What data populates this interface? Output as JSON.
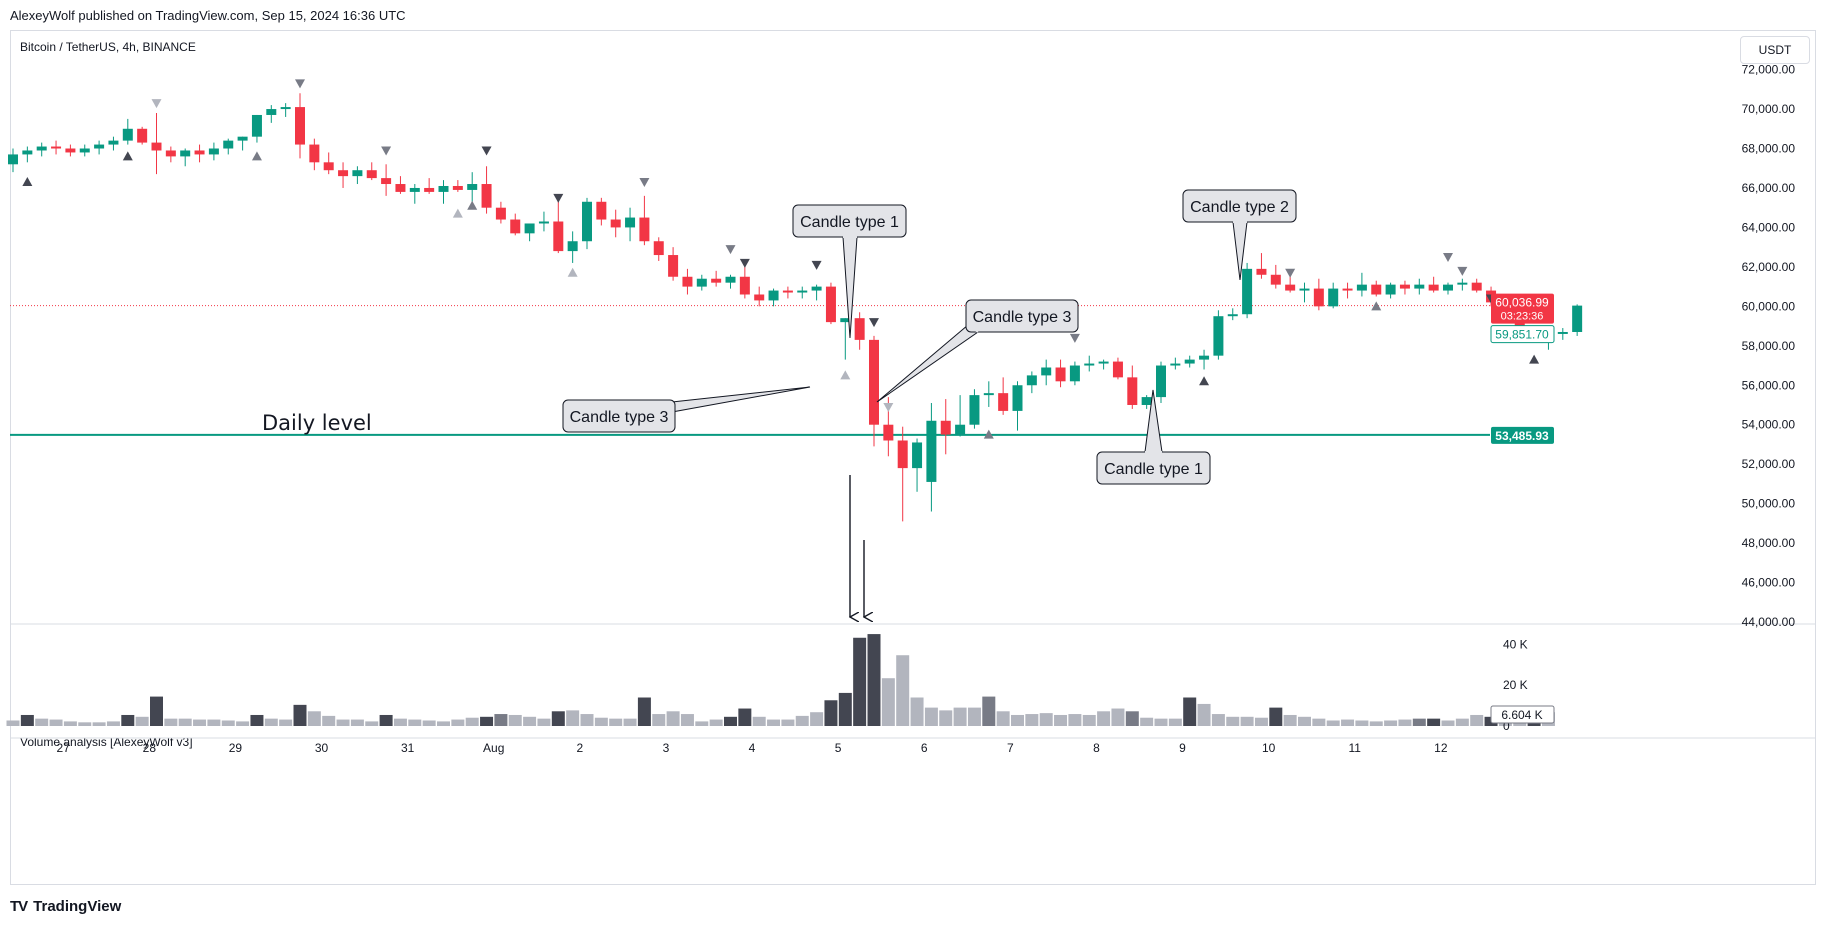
{
  "header": {
    "published_line": "AlexeyWolf published on TradingView.com, Sep 15, 2024 16:36 UTC"
  },
  "chart_header": {
    "symbol": "Bitcoin / TetherUS, 4h, BINANCE",
    "currency": "USDT"
  },
  "volume_pane": {
    "title": "Volume analysis [AlexeyWolf v3]",
    "current_volume_label": "6.604 K"
  },
  "footer": {
    "brand": "TradingView",
    "logo_text": "TV"
  },
  "colors": {
    "up": "#089981",
    "down": "#f23645",
    "level": "#089981",
    "grid": "#f0f3fa",
    "vol_dark": "#434651",
    "vol_mid": "#787b86",
    "vol_light": "#b2b5be"
  },
  "price_labels": {
    "last_price": "60,036.99",
    "countdown": "03:23:36",
    "second_price": "59,851.70",
    "daily_level": "53,485.93"
  },
  "annotations": {
    "daily_level_text": "Daily level",
    "callouts": [
      {
        "id": "c1",
        "text": "Candle type 1"
      },
      {
        "id": "c2",
        "text": "Candle type 3"
      },
      {
        "id": "c3",
        "text": "Candle type 3"
      },
      {
        "id": "c4",
        "text": "Candle type 2"
      },
      {
        "id": "c5",
        "text": "Candle type 1"
      }
    ]
  },
  "chart_data": {
    "type": "candlestick",
    "price_axis": {
      "ticks": [
        44000,
        46000,
        48000,
        50000,
        52000,
        54000,
        56000,
        58000,
        60000,
        62000,
        64000,
        66000,
        68000,
        70000,
        72000
      ],
      "tick_labels": [
        "44,000.00",
        "46,000.00",
        "48,000.00",
        "50,000.00",
        "52,000.00",
        "54,000.00",
        "56,000.00",
        "58,000.00",
        "60,000.00",
        "62,000.00",
        "64,000.00",
        "66,000.00",
        "68,000.00",
        "70,000.00",
        "72,000.00"
      ],
      "range": [
        44000,
        73500
      ]
    },
    "volume_axis": {
      "ticks": [
        0,
        20000,
        40000
      ],
      "tick_labels": [
        "0",
        "20 K",
        "40 K"
      ],
      "range": [
        0,
        47000
      ]
    },
    "time_axis": {
      "labels": [
        "27",
        "28",
        "29",
        "30",
        "31",
        "Aug",
        "2",
        "3",
        "4",
        "5",
        "6",
        "7",
        "8",
        "9",
        "10",
        "11",
        "12"
      ],
      "label_positions_bar": [
        3.5,
        9.5,
        15.5,
        21.5,
        27.5,
        33.5,
        39.5,
        45.5,
        51.5,
        57.5,
        63.5,
        69.5,
        75.5,
        81.5,
        87.5,
        93.5,
        99.5
      ]
    },
    "last_price": 60036.99,
    "daily_level": 53485.93,
    "candles": [
      [
        67200,
        68000,
        66800,
        67700
      ],
      [
        67700,
        68100,
        67300,
        67900
      ],
      [
        67900,
        68300,
        67600,
        68100
      ],
      [
        68100,
        68400,
        67700,
        68000
      ],
      [
        68000,
        68200,
        67600,
        67800
      ],
      [
        67800,
        68200,
        67600,
        68000
      ],
      [
        68000,
        68400,
        67700,
        68200
      ],
      [
        68200,
        68600,
        67900,
        68400
      ],
      [
        68400,
        69500,
        68200,
        69000
      ],
      [
        69000,
        69100,
        68200,
        68300
      ],
      [
        68300,
        69800,
        66700,
        67900
      ],
      [
        67900,
        68100,
        67300,
        67600
      ],
      [
        67600,
        68000,
        67100,
        67900
      ],
      [
        67900,
        68200,
        67300,
        67700
      ],
      [
        67700,
        68300,
        67400,
        68000
      ],
      [
        68000,
        68500,
        67700,
        68400
      ],
      [
        68400,
        68600,
        67900,
        68600
      ],
      [
        68600,
        69700,
        68300,
        69700
      ],
      [
        69700,
        70200,
        69300,
        70000
      ],
      [
        70000,
        70300,
        69600,
        70100
      ],
      [
        70100,
        70800,
        67500,
        68200
      ],
      [
        68200,
        68500,
        66900,
        67300
      ],
      [
        67300,
        67800,
        66700,
        66900
      ],
      [
        66900,
        67300,
        66000,
        66600
      ],
      [
        66600,
        67100,
        66200,
        66900
      ],
      [
        66900,
        67300,
        66400,
        66500
      ],
      [
        66500,
        67200,
        65600,
        66200
      ],
      [
        66200,
        66600,
        65700,
        65800
      ],
      [
        65800,
        66200,
        65200,
        66000
      ],
      [
        66000,
        66500,
        65700,
        65800
      ],
      [
        65800,
        66400,
        65200,
        66100
      ],
      [
        66100,
        66400,
        65800,
        65900
      ],
      [
        65900,
        66800,
        65300,
        66200
      ],
      [
        66200,
        67100,
        64700,
        65000
      ],
      [
        65000,
        65300,
        64200,
        64400
      ],
      [
        64400,
        64700,
        63600,
        63700
      ],
      [
        63700,
        64100,
        63300,
        64200
      ],
      [
        64200,
        64800,
        63800,
        64300
      ],
      [
        64300,
        65400,
        62700,
        62800
      ],
      [
        62800,
        63800,
        62200,
        63300
      ],
      [
        63300,
        65500,
        62900,
        65300
      ],
      [
        65300,
        65500,
        64100,
        64400
      ],
      [
        64400,
        64900,
        63500,
        64000
      ],
      [
        64000,
        65000,
        63300,
        64500
      ],
      [
        64500,
        65600,
        63100,
        63300
      ],
      [
        63300,
        63500,
        62300,
        62600
      ],
      [
        62600,
        63000,
        61300,
        61500
      ],
      [
        61500,
        61900,
        60600,
        61000
      ],
      [
        61000,
        61600,
        60800,
        61400
      ],
      [
        61400,
        61800,
        61000,
        61200
      ],
      [
        61200,
        61600,
        60900,
        61500
      ],
      [
        61500,
        62200,
        60400,
        60600
      ],
      [
        60600,
        61000,
        60000,
        60300
      ],
      [
        60300,
        60900,
        60000,
        60800
      ],
      [
        60800,
        61000,
        60400,
        60700
      ],
      [
        60700,
        61000,
        60400,
        60800
      ],
      [
        60800,
        61100,
        60300,
        61000
      ],
      [
        61000,
        61200,
        59100,
        59200
      ],
      [
        59200,
        59400,
        57300,
        59400
      ],
      [
        59400,
        59700,
        57800,
        58300
      ],
      [
        58300,
        58500,
        52900,
        54000
      ],
      [
        54000,
        55400,
        52400,
        53200
      ],
      [
        53200,
        53900,
        49100,
        51800
      ],
      [
        51800,
        53300,
        50600,
        53100
      ],
      [
        51100,
        55100,
        49600,
        54200
      ],
      [
        54200,
        55300,
        52500,
        53500
      ],
      [
        53500,
        55500,
        53400,
        54000
      ],
      [
        54000,
        55800,
        53800,
        55500
      ],
      [
        55500,
        56200,
        54900,
        55600
      ],
      [
        55600,
        56400,
        54500,
        54700
      ],
      [
        54700,
        56200,
        53700,
        56000
      ],
      [
        56000,
        56700,
        55600,
        56500
      ],
      [
        56500,
        57300,
        56000,
        56900
      ],
      [
        56900,
        57300,
        55900,
        56200
      ],
      [
        56200,
        57200,
        56000,
        57000
      ],
      [
        57000,
        57500,
        56700,
        57100
      ],
      [
        57100,
        57300,
        56800,
        57200
      ],
      [
        57200,
        57400,
        56300,
        56400
      ],
      [
        56400,
        57000,
        54800,
        55000
      ],
      [
        55000,
        55500,
        54800,
        55400
      ],
      [
        55400,
        57200,
        55100,
        57000
      ],
      [
        57000,
        57400,
        56800,
        57100
      ],
      [
        57100,
        57500,
        56900,
        57300
      ],
      [
        57300,
        57800,
        56800,
        57500
      ],
      [
        57500,
        59800,
        57300,
        59500
      ],
      [
        59500,
        59900,
        59300,
        59600
      ],
      [
        59600,
        62200,
        59400,
        61900
      ],
      [
        61900,
        62700,
        61400,
        61600
      ],
      [
        61600,
        62100,
        60900,
        61100
      ],
      [
        61100,
        61600,
        60700,
        60800
      ],
      [
        60800,
        61200,
        60200,
        60900
      ],
      [
        60900,
        61400,
        59800,
        60000
      ],
      [
        60000,
        61200,
        59900,
        60900
      ],
      [
        60900,
        61200,
        60400,
        60800
      ],
      [
        60800,
        61700,
        60500,
        61100
      ],
      [
        61100,
        61300,
        60500,
        60600
      ],
      [
        60600,
        61200,
        60400,
        61100
      ],
      [
        61100,
        61300,
        60600,
        60900
      ],
      [
        60900,
        61400,
        60600,
        61100
      ],
      [
        61100,
        61500,
        60700,
        60800
      ],
      [
        60800,
        61200,
        60600,
        61100
      ],
      [
        61100,
        61400,
        60800,
        61200
      ],
      [
        61200,
        61400,
        60700,
        60800
      ],
      [
        60800,
        61000,
        60000,
        60200
      ],
      [
        60200,
        60500,
        59800,
        59700
      ],
      [
        59700,
        60000,
        58600,
        58800
      ],
      [
        58800,
        59000,
        58300,
        58500
      ],
      [
        58500,
        58900,
        57800,
        58600
      ],
      [
        58600,
        58900,
        58300,
        58700
      ],
      [
        58700,
        60100,
        58500,
        60037
      ]
    ],
    "volumes": [
      6,
      12,
      8,
      7,
      5,
      4,
      4,
      5,
      12,
      10,
      32,
      8,
      8,
      7,
      7,
      6,
      5,
      12,
      8,
      7,
      23,
      16,
      11,
      7,
      7,
      5,
      12,
      8,
      7,
      6,
      5,
      7,
      9,
      10,
      13,
      12,
      10,
      8,
      16,
      17,
      13,
      9,
      8,
      8,
      31,
      13,
      16,
      13,
      5,
      7,
      10,
      19,
      10,
      7,
      7,
      11,
      15,
      28,
      36,
      96,
      100,
      52,
      77,
      31,
      20,
      17,
      20,
      20,
      32,
      16,
      12,
      13,
      14,
      12,
      13,
      12,
      16,
      19,
      16,
      9,
      8,
      8,
      31,
      24,
      13,
      10,
      10,
      9,
      20,
      12,
      10,
      8,
      6,
      7,
      6,
      5,
      6,
      7,
      8,
      8,
      6,
      8,
      12,
      10,
      9,
      11,
      14,
      15
    ],
    "volume_shade": [
      "light",
      "dark",
      "light",
      "light",
      "light",
      "light",
      "light",
      "light",
      "dark",
      "light",
      "dark",
      "light",
      "light",
      "light",
      "light",
      "light",
      "light",
      "dark",
      "light",
      "light",
      "dark",
      "light",
      "light",
      "light",
      "light",
      "light",
      "dark",
      "light",
      "light",
      "light",
      "light",
      "light",
      "light",
      "dark",
      "mid",
      "light",
      "light",
      "light",
      "dark",
      "light",
      "light",
      "light",
      "light",
      "light",
      "dark",
      "light",
      "light",
      "light",
      "light",
      "light",
      "dark",
      "dark",
      "light",
      "light",
      "light",
      "light",
      "light",
      "dark",
      "dark",
      "dark",
      "dark",
      "light",
      "light",
      "light",
      "light",
      "light",
      "light",
      "light",
      "mid",
      "light",
      "light",
      "light",
      "light",
      "light",
      "light",
      "light",
      "light",
      "light",
      "mid",
      "light",
      "light",
      "light",
      "dark",
      "light",
      "light",
      "light",
      "light",
      "light",
      "dark",
      "light",
      "light",
      "light",
      "light",
      "light",
      "light",
      "light",
      "light",
      "light",
      "mid",
      "dark",
      "light",
      "light",
      "light",
      "dark",
      "light",
      "light",
      "dark",
      "light"
    ],
    "markers": [
      {
        "bar": 1,
        "dir": "up",
        "shade": "dark",
        "price": 66300
      },
      {
        "bar": 8,
        "dir": "up",
        "shade": "dark",
        "price": 67600
      },
      {
        "bar": 10,
        "dir": "down",
        "shade": "light",
        "price": 70300
      },
      {
        "bar": 17,
        "dir": "up",
        "shade": "mid",
        "price": 67600
      },
      {
        "bar": 20,
        "dir": "down",
        "shade": "mid",
        "price": 71300
      },
      {
        "bar": 26,
        "dir": "down",
        "shade": "mid",
        "price": 67900
      },
      {
        "bar": 31,
        "dir": "up",
        "shade": "light",
        "price": 64700
      },
      {
        "bar": 32,
        "dir": "up",
        "shade": "mid",
        "price": 65100
      },
      {
        "bar": 33,
        "dir": "down",
        "shade": "dark",
        "price": 67900
      },
      {
        "bar": 38,
        "dir": "down",
        "shade": "dark",
        "price": 65500
      },
      {
        "bar": 39,
        "dir": "up",
        "shade": "light",
        "price": 61700
      },
      {
        "bar": 44,
        "dir": "down",
        "shade": "mid",
        "price": 66300
      },
      {
        "bar": 50,
        "dir": "down",
        "shade": "mid",
        "price": 62900
      },
      {
        "bar": 51,
        "dir": "down",
        "shade": "dark",
        "price": 62200
      },
      {
        "bar": 56,
        "dir": "down",
        "shade": "dark",
        "price": 62100
      },
      {
        "bar": 58,
        "dir": "up",
        "shade": "light",
        "price": 56500
      },
      {
        "bar": 60,
        "dir": "down",
        "shade": "dark",
        "price": 59200
      },
      {
        "bar": 61,
        "dir": "down",
        "shade": "light",
        "price": 54900
      },
      {
        "bar": 68,
        "dir": "up",
        "shade": "mid",
        "price": 53500
      },
      {
        "bar": 74,
        "dir": "down",
        "shade": "mid",
        "price": 58400
      },
      {
        "bar": 83,
        "dir": "up",
        "shade": "dark",
        "price": 56200
      },
      {
        "bar": 89,
        "dir": "down",
        "shade": "mid",
        "price": 61700
      },
      {
        "bar": 95,
        "dir": "up",
        "shade": "mid",
        "price": 60000
      },
      {
        "bar": 100,
        "dir": "down",
        "shade": "mid",
        "price": 62500
      },
      {
        "bar": 101,
        "dir": "down",
        "shade": "mid",
        "price": 61800
      },
      {
        "bar": 103,
        "dir": "down",
        "shade": "dark",
        "price": 60400
      },
      {
        "bar": 106,
        "dir": "up",
        "shade": "dark",
        "price": 57300
      }
    ]
  }
}
